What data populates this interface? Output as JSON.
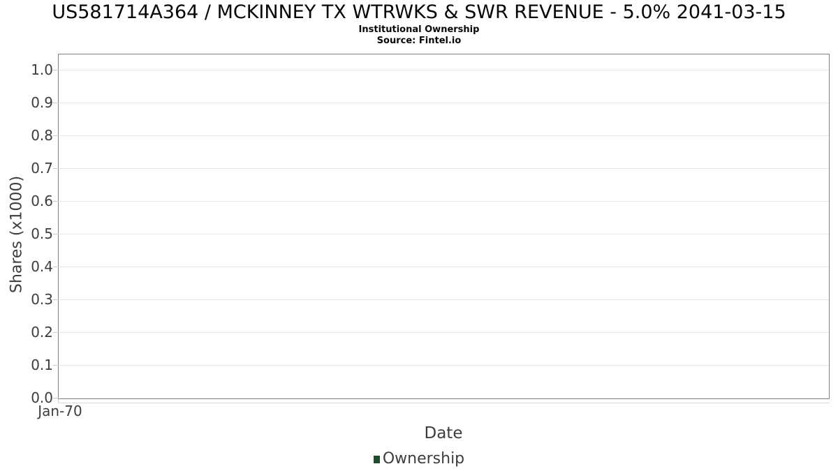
{
  "chart_data": {
    "type": "line",
    "title": "US581714A364 / MCKINNEY TX WTRWKS & SWR REVENUE - 5.0% 2041-03-15",
    "subtitle": "Institutional Ownership",
    "source": "Source: Fintel.io",
    "xlabel": "Date",
    "ylabel": "Shares (x1000)",
    "x_tick_labels": [
      "Jan-70"
    ],
    "y_tick_labels": [
      "0.0",
      "0.1",
      "0.2",
      "0.3",
      "0.4",
      "0.5",
      "0.6",
      "0.7",
      "0.8",
      "0.9",
      "1.0"
    ],
    "ylim": [
      0,
      1.05
    ],
    "grid": "horizontal-only",
    "legend_position": "bottom-center",
    "series": [
      {
        "name": "Ownership",
        "color": "#1e4d2b",
        "x": [],
        "values": []
      }
    ]
  },
  "colors": {
    "background": "#ffffff",
    "plot_border": "#828282",
    "gridline": "#e7e7e7",
    "tick_mark": "#c9c9c9",
    "axis_text": "#3d3d3d",
    "title_text": "#070707",
    "legend_marker": "#1e4d2b"
  }
}
